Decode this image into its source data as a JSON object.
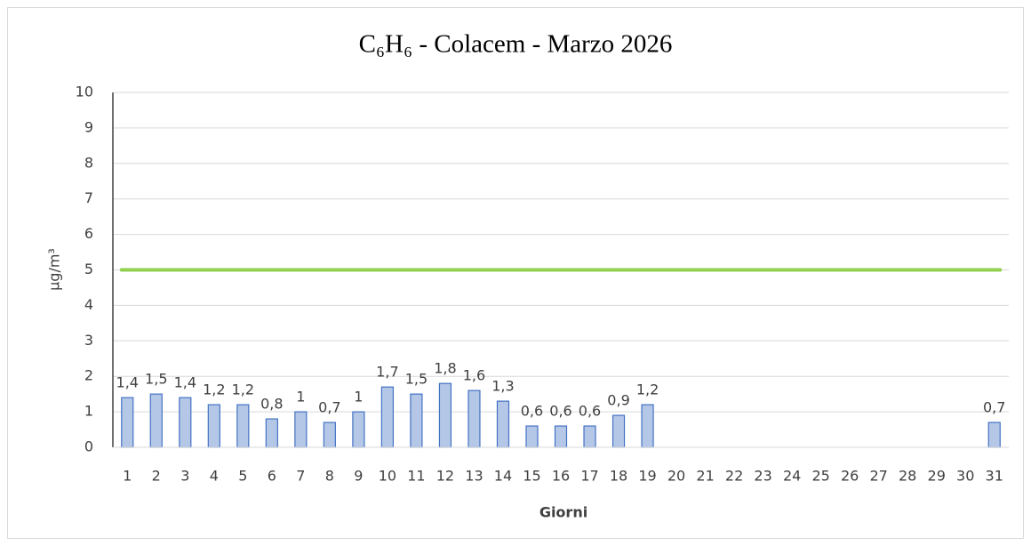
{
  "chart_data": {
    "type": "bar",
    "title": "C₆H₆ - Colacem - Marzo 2026",
    "x_label": "Giorni",
    "y_label": "µg/m³",
    "categories": [
      "1",
      "2",
      "3",
      "4",
      "5",
      "6",
      "7",
      "8",
      "9",
      "10",
      "11",
      "12",
      "13",
      "14",
      "15",
      "16",
      "17",
      "18",
      "19",
      "20",
      "21",
      "22",
      "23",
      "24",
      "25",
      "26",
      "27",
      "28",
      "29",
      "30",
      "31"
    ],
    "values": [
      1.4,
      1.5,
      1.4,
      1.2,
      1.2,
      0.8,
      1,
      0.7,
      1,
      1.7,
      1.5,
      1.8,
      1.6,
      1.3,
      0.6,
      0.6,
      0.6,
      0.9,
      1.2,
      null,
      null,
      null,
      null,
      null,
      null,
      null,
      null,
      null,
      null,
      null,
      0.7
    ],
    "value_labels": [
      "1,4",
      "1,5",
      "1,4",
      "1,2",
      "1,2",
      "0,8",
      "1",
      "0,7",
      "1",
      "1,7",
      "1,5",
      "1,8",
      "1,6",
      "1,3",
      "0,6",
      "0,6",
      "0,6",
      "0,9",
      "1,2",
      null,
      null,
      null,
      null,
      null,
      null,
      null,
      null,
      null,
      null,
      null,
      "0,7"
    ],
    "color": "#b4c7e7",
    "edge_color": "#4472c4",
    "reference_line": {
      "value": 5,
      "color": "#92d050"
    },
    "ylim": [
      0,
      10
    ],
    "yticks": [
      0,
      1,
      2,
      3,
      4,
      5,
      6,
      7,
      8,
      9,
      10
    ],
    "grid": true
  }
}
